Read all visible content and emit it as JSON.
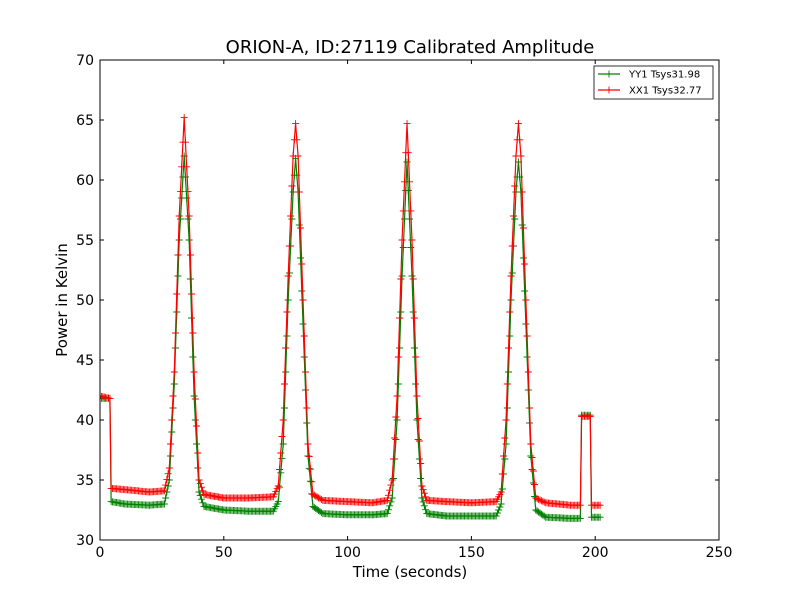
{
  "chart_data": {
    "type": "line",
    "title": "ORION-A, ID:27119 Calibrated Amplitude",
    "xlabel": "Time (seconds)",
    "ylabel": "Power in Kelvin",
    "xlim": [
      0,
      250
    ],
    "ylim": [
      30,
      70
    ],
    "xticks": [
      0,
      50,
      100,
      150,
      200,
      250
    ],
    "yticks": [
      30,
      35,
      40,
      45,
      50,
      55,
      60,
      65,
      70
    ],
    "grid": false,
    "legend_position": "top-right",
    "marker": "plus",
    "series": [
      {
        "name": "YY1 Tsys31.98",
        "color": "#008000",
        "points": [
          [
            0,
            41.8
          ],
          [
            4,
            41.8
          ],
          [
            4.5,
            33.2
          ],
          [
            10,
            33.0
          ],
          [
            20,
            32.9
          ],
          [
            26,
            33.0
          ],
          [
            28,
            35.0
          ],
          [
            30,
            43.0
          ],
          [
            32,
            55.0
          ],
          [
            34,
            62.0
          ],
          [
            36,
            55.0
          ],
          [
            38,
            42.0
          ],
          [
            40,
            34.0
          ],
          [
            42,
            32.8
          ],
          [
            50,
            32.5
          ],
          [
            60,
            32.4
          ],
          [
            70,
            32.4
          ],
          [
            72,
            33.2
          ],
          [
            74,
            38.0
          ],
          [
            76,
            50.0
          ],
          [
            78,
            59.0
          ],
          [
            79,
            61.8
          ],
          [
            80,
            59.0
          ],
          [
            82,
            48.0
          ],
          [
            84,
            37.0
          ],
          [
            86,
            32.8
          ],
          [
            90,
            32.2
          ],
          [
            100,
            32.1
          ],
          [
            110,
            32.1
          ],
          [
            116,
            32.2
          ],
          [
            118,
            33.5
          ],
          [
            120,
            40.0
          ],
          [
            122,
            52.0
          ],
          [
            124,
            61.5
          ],
          [
            126,
            52.0
          ],
          [
            128,
            40.0
          ],
          [
            130,
            33.5
          ],
          [
            132,
            32.2
          ],
          [
            140,
            32.0
          ],
          [
            150,
            32.0
          ],
          [
            160,
            32.0
          ],
          [
            162,
            33.0
          ],
          [
            164,
            38.0
          ],
          [
            166,
            50.0
          ],
          [
            168,
            59.0
          ],
          [
            169,
            61.5
          ],
          [
            170,
            59.0
          ],
          [
            172,
            48.0
          ],
          [
            174,
            37.0
          ],
          [
            176,
            32.5
          ],
          [
            180,
            31.9
          ],
          [
            190,
            31.8
          ],
          [
            194,
            31.8
          ],
          [
            194.5,
            40.4
          ],
          [
            198,
            40.4
          ],
          [
            198.5,
            31.9
          ],
          [
            202,
            31.9
          ]
        ]
      },
      {
        "name": "XX1 Tsys32.77",
        "color": "#ff0000",
        "points": [
          [
            0,
            42.0
          ],
          [
            4,
            41.8
          ],
          [
            4.5,
            34.3
          ],
          [
            10,
            34.2
          ],
          [
            20,
            34.0
          ],
          [
            26,
            34.1
          ],
          [
            28,
            36.0
          ],
          [
            30,
            44.0
          ],
          [
            32,
            57.0
          ],
          [
            34,
            65.2
          ],
          [
            36,
            57.0
          ],
          [
            38,
            44.0
          ],
          [
            40,
            35.0
          ],
          [
            42,
            33.8
          ],
          [
            50,
            33.5
          ],
          [
            60,
            33.5
          ],
          [
            70,
            33.6
          ],
          [
            72,
            34.5
          ],
          [
            74,
            40.0
          ],
          [
            76,
            52.0
          ],
          [
            78,
            62.0
          ],
          [
            79,
            64.7
          ],
          [
            80,
            62.0
          ],
          [
            82,
            50.0
          ],
          [
            84,
            38.0
          ],
          [
            86,
            33.8
          ],
          [
            90,
            33.3
          ],
          [
            100,
            33.2
          ],
          [
            110,
            33.1
          ],
          [
            116,
            33.3
          ],
          [
            118,
            35.0
          ],
          [
            120,
            42.0
          ],
          [
            122,
            55.0
          ],
          [
            124,
            64.7
          ],
          [
            126,
            55.0
          ],
          [
            128,
            42.0
          ],
          [
            130,
            34.5
          ],
          [
            132,
            33.3
          ],
          [
            140,
            33.2
          ],
          [
            150,
            33.1
          ],
          [
            160,
            33.2
          ],
          [
            162,
            34.0
          ],
          [
            164,
            40.0
          ],
          [
            166,
            52.0
          ],
          [
            168,
            62.0
          ],
          [
            169,
            64.7
          ],
          [
            170,
            62.0
          ],
          [
            172,
            50.0
          ],
          [
            174,
            38.0
          ],
          [
            176,
            33.5
          ],
          [
            180,
            33.1
          ],
          [
            190,
            32.9
          ],
          [
            194,
            32.9
          ],
          [
            194.5,
            40.3
          ],
          [
            198,
            40.3
          ],
          [
            198.5,
            32.9
          ],
          [
            202,
            32.9
          ]
        ]
      }
    ]
  }
}
